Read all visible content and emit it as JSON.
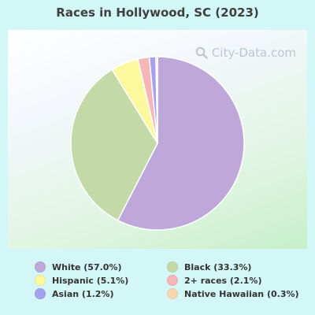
{
  "title": "Races in Hollywood, SC (2023)",
  "watermark": "City-Data.com",
  "chart_data": {
    "type": "pie",
    "title": "Races in Hollywood, SC (2023)",
    "slices": [
      {
        "label": "White",
        "value": 57.0,
        "legend": "White (57.0%)",
        "color": "#bea8d9"
      },
      {
        "label": "Black",
        "value": 33.3,
        "legend": "Black (33.3%)",
        "color": "#c3d9a8"
      },
      {
        "label": "Hispanic",
        "value": 5.1,
        "legend": "Hispanic (5.1%)",
        "color": "#fbf89d"
      },
      {
        "label": "2+ races",
        "value": 2.1,
        "legend": "2+ races (2.1%)",
        "color": "#f6b5b7"
      },
      {
        "label": "Asian",
        "value": 1.2,
        "legend": "Asian (1.2%)",
        "color": "#a4a2ec"
      },
      {
        "label": "Native Hawaiian",
        "value": 0.3,
        "legend": "Native Hawaiian (0.3%)",
        "color": "#f6d8ae"
      }
    ],
    "legend_order": [
      "White",
      "Black",
      "Hispanic",
      "2+ races",
      "Asian",
      "Native Hawaiian"
    ],
    "legend_position": "bottom"
  }
}
